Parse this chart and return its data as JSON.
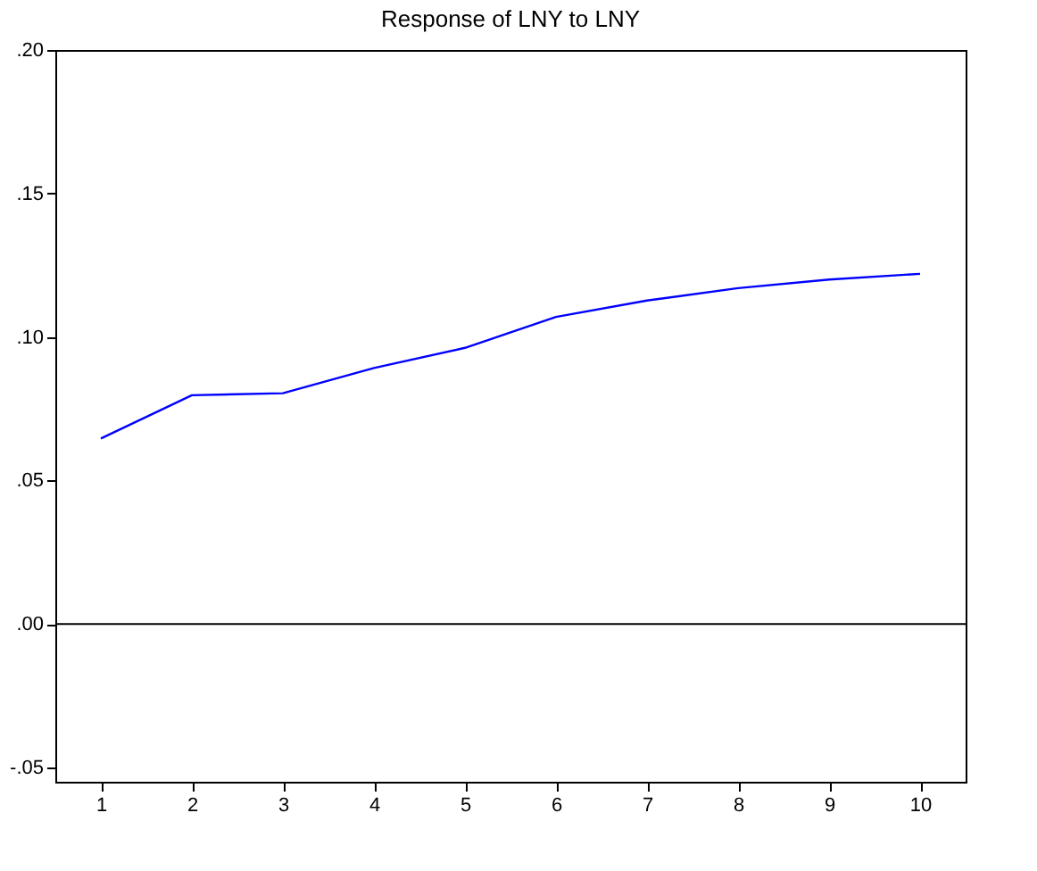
{
  "chart_data": {
    "type": "line",
    "title": "Response of LNY to LNY",
    "categories": [
      "1",
      "2",
      "3",
      "4",
      "5",
      "6",
      "7",
      "8",
      "9",
      "10"
    ],
    "series": [
      {
        "color": "#0000ff",
        "values": [
          0.0646,
          0.0797,
          0.0804,
          0.0892,
          0.0962,
          0.107,
          0.1127,
          0.117,
          0.12,
          0.122
        ]
      }
    ],
    "ylim": [
      -0.055,
      0.2
    ],
    "yticks": [
      {
        "value": -0.05,
        "label": "-.05"
      },
      {
        "value": 0,
        "label": ".00"
      },
      {
        "value": 0.05,
        "label": ".05"
      },
      {
        "value": 0.1,
        "label": ".10"
      },
      {
        "value": 0.15,
        "label": ".15"
      },
      {
        "value": 0.2,
        "label": ".20"
      }
    ],
    "ref_lines": [
      {
        "axis": "y",
        "value": 0,
        "color": "#000000"
      }
    ],
    "grid": false,
    "marker": "none",
    "line_style": "solid"
  }
}
